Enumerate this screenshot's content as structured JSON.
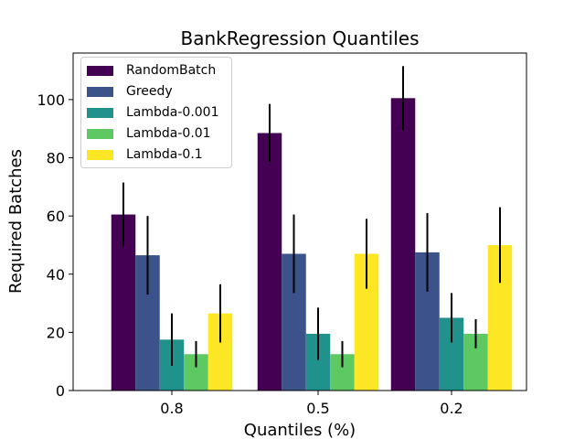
{
  "chart_data": {
    "type": "bar",
    "title": "BankRegression Quantiles",
    "xlabel": "Quantiles (%)",
    "ylabel": "Required Batches",
    "categories": [
      "0.8",
      "0.5",
      "0.2"
    ],
    "ylim": [
      0,
      116
    ],
    "yticks": [
      0,
      20,
      40,
      60,
      80,
      100
    ],
    "grid": false,
    "legend_position": "top-left",
    "series": [
      {
        "name": "RandomBatch",
        "color": "#440154",
        "values": [
          60.5,
          88.5,
          100.5
        ],
        "errors": [
          11,
          10,
          11
        ]
      },
      {
        "name": "Greedy",
        "color": "#3b528b",
        "values": [
          46.5,
          47,
          47.5
        ],
        "errors": [
          13.5,
          13.5,
          13.5
        ]
      },
      {
        "name": "Lambda-0.001",
        "color": "#21918c",
        "values": [
          17.5,
          19.5,
          25
        ],
        "errors": [
          9,
          9,
          8.5
        ]
      },
      {
        "name": "Lambda-0.01",
        "color": "#5ec962",
        "values": [
          12.5,
          12.5,
          19.5
        ],
        "errors": [
          4.5,
          4.5,
          5
        ]
      },
      {
        "name": "Lambda-0.1",
        "color": "#fde725",
        "values": [
          26.5,
          47,
          50
        ],
        "errors": [
          10,
          12,
          13
        ]
      }
    ]
  }
}
